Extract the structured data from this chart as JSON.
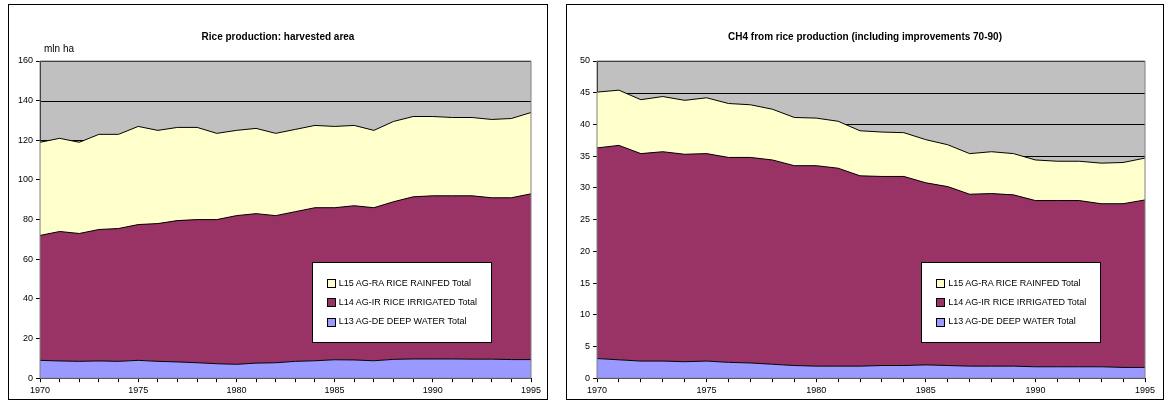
{
  "chart_data": [
    {
      "type": "area",
      "title": "Rice production: harvested area",
      "ylabel": "mln ha",
      "stacked": true,
      "grid": "y",
      "legend": "bottom right",
      "x": [
        1970,
        1971,
        1972,
        1973,
        1974,
        1975,
        1976,
        1977,
        1978,
        1979,
        1980,
        1981,
        1982,
        1983,
        1984,
        1985,
        1986,
        1987,
        1988,
        1989,
        1990,
        1991,
        1992,
        1993,
        1994,
        1995
      ],
      "series": [
        {
          "name": "L13 AG-DE DEEP WATER Total",
          "color": "#9999ff",
          "values": [
            9,
            8.7,
            8.5,
            8.7,
            8.5,
            9,
            8.5,
            8.2,
            7.8,
            7.3,
            7,
            7.6,
            7.8,
            8.5,
            8.8,
            9.3,
            9.2,
            8.8,
            9.5,
            9.7,
            9.7,
            9.7,
            9.6,
            9.6,
            9.4,
            9.4
          ]
        },
        {
          "name": "L14 AG-IR RICE IRRIGATED Total",
          "color": "#993366",
          "values": [
            63,
            65.3,
            64.5,
            66.3,
            67,
            68.5,
            69.5,
            71.3,
            72.2,
            72.7,
            75,
            75.4,
            74.2,
            75.5,
            77.2,
            76.7,
            77.8,
            77.2,
            79.5,
            81.8,
            82.3,
            82.3,
            82.4,
            81.4,
            81.6,
            83.6
          ]
        },
        {
          "name": "L15 AG-RA RICE RAINFED Total",
          "color": "#ffffcc",
          "values": [
            47,
            47,
            46,
            48,
            47.5,
            49.5,
            47,
            47,
            46.5,
            43.5,
            43,
            43,
            41.5,
            41.5,
            41.5,
            41,
            40.5,
            39,
            40.5,
            40.5,
            40,
            39.5,
            39.5,
            39.5,
            40,
            41
          ]
        }
      ],
      "xlim": [
        1970,
        1995
      ],
      "xticks": [
        1970,
        {
          "value": 1971,
          "label": null
        },
        {
          "value": 1972,
          "label": null
        },
        {
          "value": 1973,
          "label": null
        },
        {
          "value": 1974,
          "label": null
        },
        1975,
        {
          "value": 1976,
          "label": null
        },
        {
          "value": 1977,
          "label": null
        },
        {
          "value": 1978,
          "label": null
        },
        {
          "value": 1979,
          "label": null
        },
        1980,
        {
          "value": 1981,
          "label": null
        },
        {
          "value": 1982,
          "label": null
        },
        {
          "value": 1983,
          "label": null
        },
        {
          "value": 1984,
          "label": null
        },
        1985,
        {
          "value": 1986,
          "label": null
        },
        {
          "value": 1987,
          "label": null
        },
        {
          "value": 1988,
          "label": null
        },
        {
          "value": 1989,
          "label": null
        },
        1990,
        {
          "value": 1991,
          "label": null
        },
        {
          "value": 1992,
          "label": null
        },
        {
          "value": 1993,
          "label": null
        },
        {
          "value": 1994,
          "label": null
        },
        1995
      ],
      "ylim": [
        0,
        160
      ],
      "yticks": [
        0,
        20,
        40,
        60,
        80,
        100,
        120,
        140,
        160
      ]
    },
    {
      "type": "area",
      "title": "CH4 from rice production (including improvements 70-90)",
      "stacked": true,
      "grid": "y",
      "legend": "bottom right",
      "x": [
        1970,
        1971,
        1972,
        1973,
        1974,
        1975,
        1976,
        1977,
        1978,
        1979,
        1980,
        1981,
        1982,
        1983,
        1984,
        1985,
        1986,
        1987,
        1988,
        1989,
        1990,
        1991,
        1992,
        1993,
        1994,
        1995
      ],
      "series": [
        {
          "name": "L13 AG-DE DEEP WATER Total",
          "color": "#9999ff",
          "values": [
            3.1,
            2.9,
            2.7,
            2.7,
            2.6,
            2.7,
            2.5,
            2.4,
            2.2,
            2.0,
            1.9,
            1.9,
            1.9,
            2.0,
            2.0,
            2.1,
            2.0,
            1.9,
            1.9,
            1.9,
            1.8,
            1.8,
            1.8,
            1.8,
            1.7,
            1.7
          ]
        },
        {
          "name": "L14 AG-IR RICE IRRIGATED Total",
          "color": "#993366",
          "values": [
            33.2,
            33.8,
            32.7,
            33.0,
            32.7,
            32.7,
            32.3,
            32.4,
            32.2,
            31.5,
            31.6,
            31.2,
            30.0,
            29.8,
            29.8,
            28.7,
            28.2,
            27.1,
            27.2,
            27.0,
            26.2,
            26.2,
            26.2,
            25.7,
            25.8,
            26.4
          ]
        },
        {
          "name": "L15 AG-RA RICE RAINFED Total",
          "color": "#ffffcc",
          "values": [
            8.8,
            8.7,
            8.5,
            8.7,
            8.5,
            8.8,
            8.5,
            8.3,
            8.0,
            7.6,
            7.5,
            7.4,
            7.1,
            7.0,
            6.9,
            6.8,
            6.6,
            6.4,
            6.6,
            6.5,
            6.4,
            6.2,
            6.2,
            6.4,
            6.5,
            6.6
          ]
        }
      ],
      "xlim": [
        1970,
        1995
      ],
      "xticks": [
        1970,
        {
          "value": 1971,
          "label": null
        },
        {
          "value": 1972,
          "label": null
        },
        {
          "value": 1973,
          "label": null
        },
        {
          "value": 1974,
          "label": null
        },
        1975,
        {
          "value": 1976,
          "label": null
        },
        {
          "value": 1977,
          "label": null
        },
        {
          "value": 1978,
          "label": null
        },
        {
          "value": 1979,
          "label": null
        },
        1980,
        {
          "value": 1981,
          "label": null
        },
        {
          "value": 1982,
          "label": null
        },
        {
          "value": 1983,
          "label": null
        },
        {
          "value": 1984,
          "label": null
        },
        1985,
        {
          "value": 1986,
          "label": null
        },
        {
          "value": 1987,
          "label": null
        },
        {
          "value": 1988,
          "label": null
        },
        {
          "value": 1989,
          "label": null
        },
        1990,
        {
          "value": 1991,
          "label": null
        },
        {
          "value": 1992,
          "label": null
        },
        {
          "value": 1993,
          "label": null
        },
        {
          "value": 1994,
          "label": null
        },
        1995
      ],
      "ylim": [
        0,
        50
      ],
      "yticks": [
        0,
        5,
        10,
        15,
        20,
        25,
        30,
        35,
        40,
        45,
        50
      ]
    }
  ]
}
